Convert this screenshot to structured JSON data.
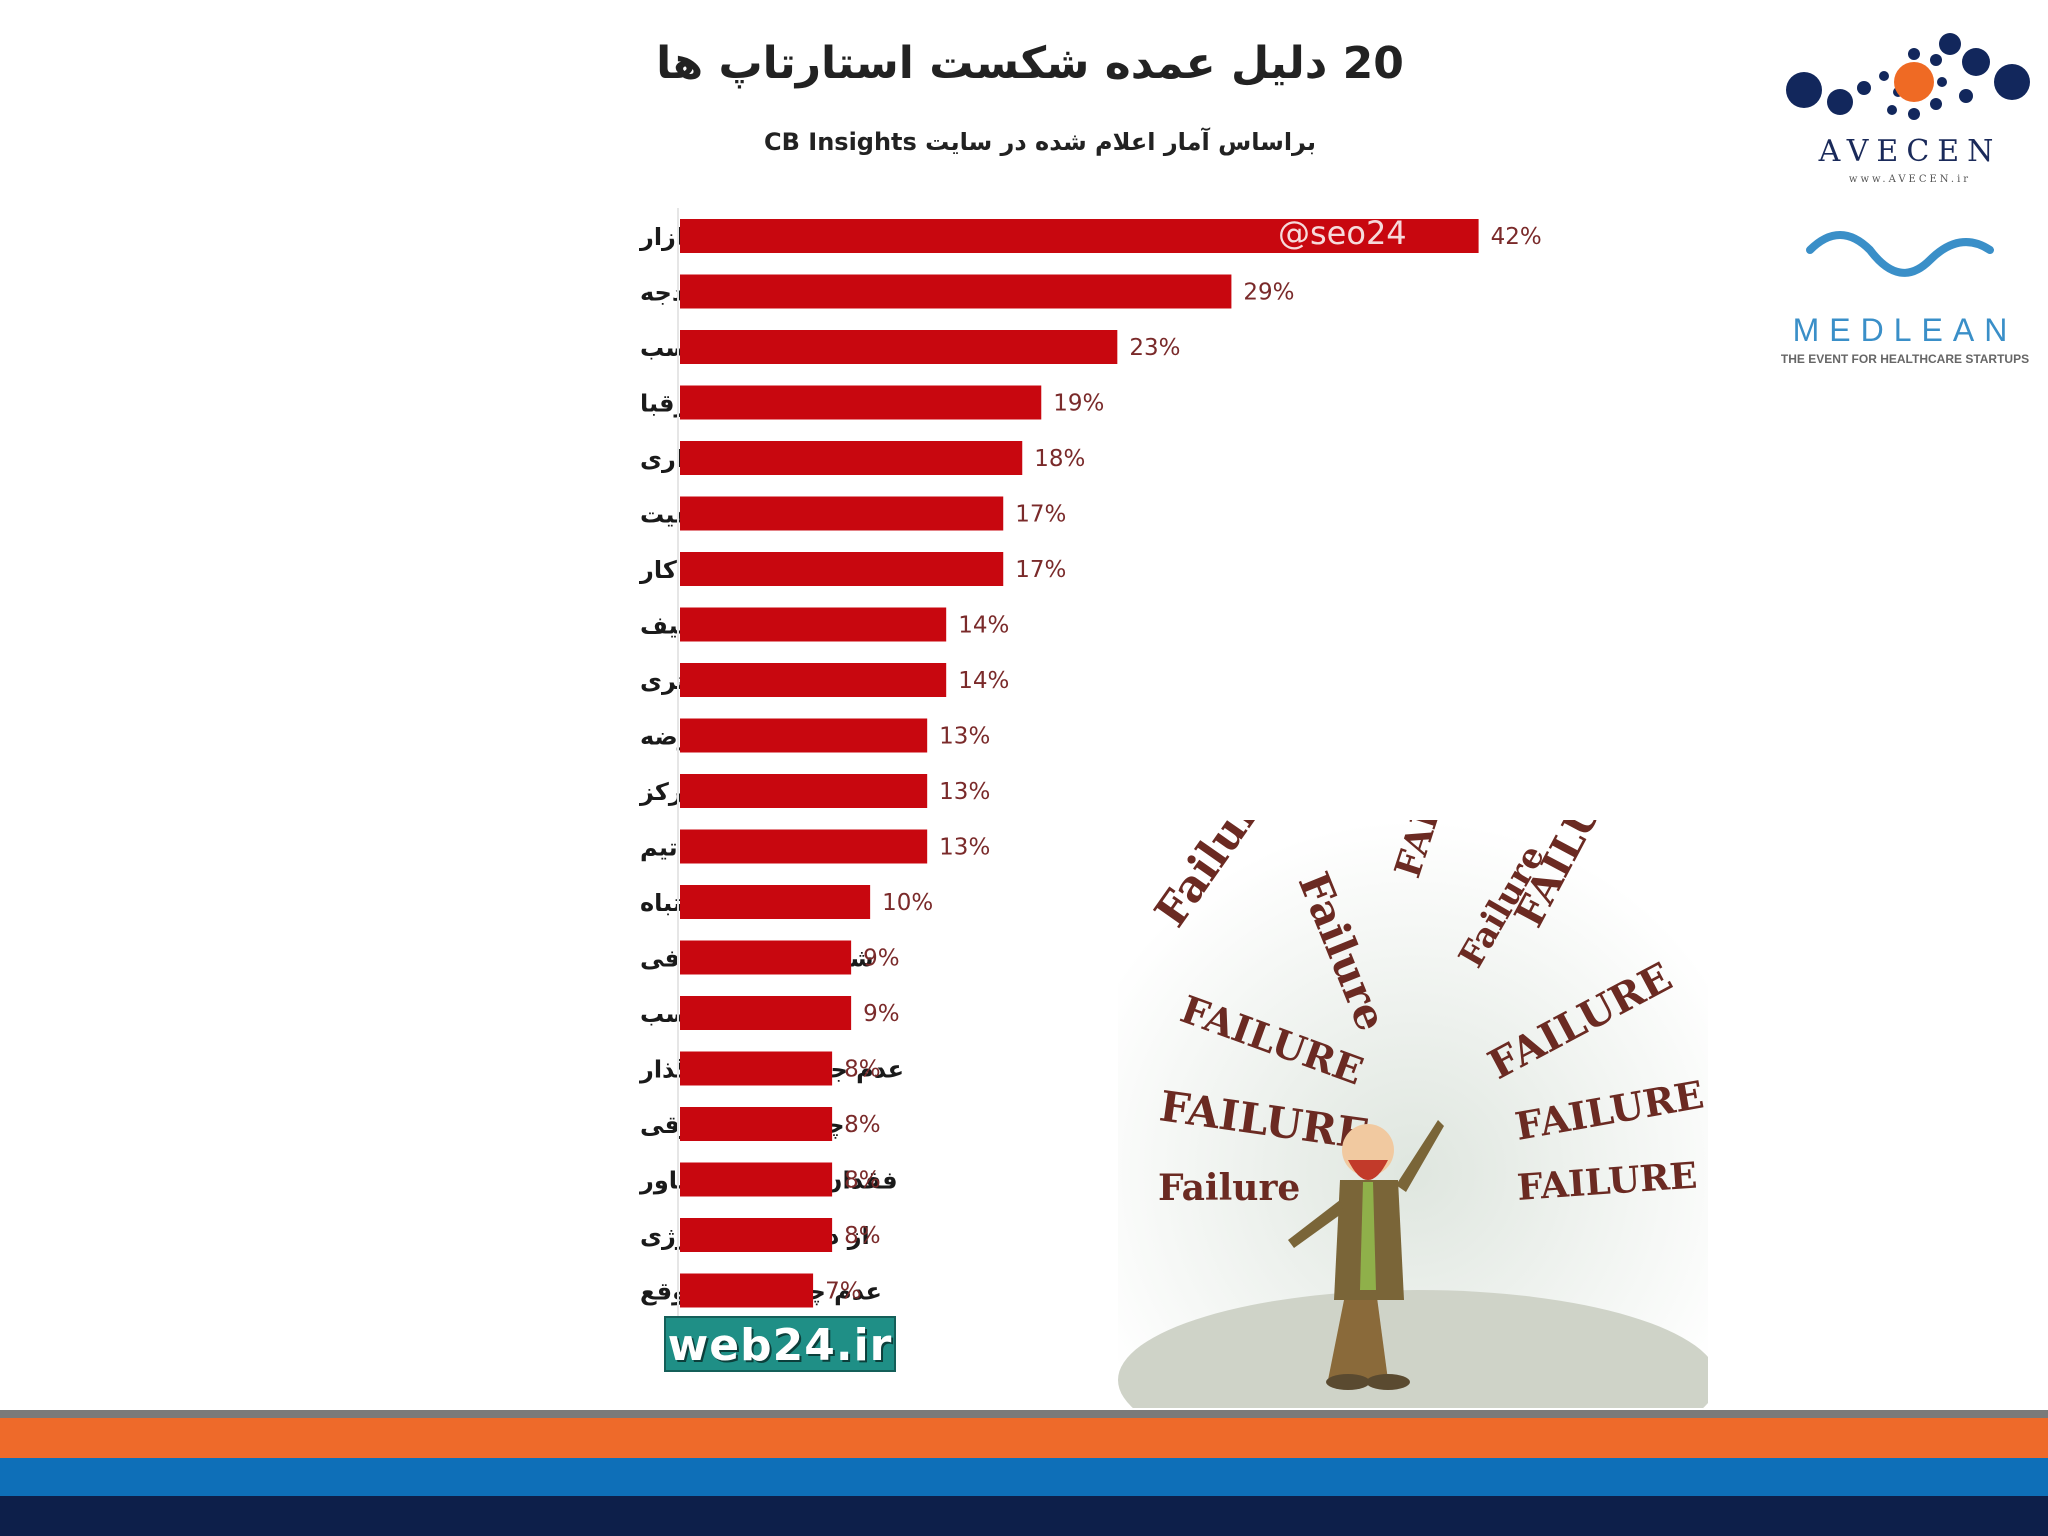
{
  "colors": {
    "bar": "#c8070f",
    "orange_stripe": "#ee6a2a",
    "blue_stripe": "#0e6fb8",
    "navy_stripe": "#0d1f4a",
    "web24_bg": "#1f8f86"
  },
  "chart_data": {
    "type": "bar",
    "orientation": "horizontal",
    "title": "20 دلیل عمده شکست استارتاپ ها",
    "subtitle": "براساس آمار اعلام شده در سایت  CB Insights",
    "categories": [
      "عدم نیاز بازار",
      "اتمام بودجه",
      "انتخاب تیم نامناسب",
      "شکست از رقبا",
      "اشتباه در قیمت گذاری",
      "محصول بی کیفیت",
      "فقدان طرح کسب و کار",
      "بازاریابی ضعیف",
      "بی توجهی به مشتری",
      "زمان نامناسب عرضه",
      "از دست دادن تمرکز",
      "ناهنماهنگی اعضای تیم",
      "چرخش اشتباه",
      "شور و شوق ناکافی",
      "مکان نامناسب",
      "عدم جذب سرمایه گذار",
      "چالشهای حقوقی",
      "فقدان شبکه یا مشاور",
      "از دست دادن انرژی",
      "عدم چرخش به موقع"
    ],
    "values": [
      42,
      29,
      23,
      19,
      18,
      17,
      17,
      14,
      14,
      13,
      13,
      13,
      10,
      9,
      9,
      8,
      8,
      8,
      8,
      7
    ],
    "value_labels": [
      "42%",
      "29%",
      "23%",
      "19%",
      "18%",
      "17%",
      "17%",
      "14%",
      "14%",
      "13%",
      "13%",
      "13%",
      "10%",
      "9%",
      "9%",
      "8%",
      "8%",
      "8%",
      "8%",
      "7%"
    ],
    "xlim": [
      0,
      45
    ],
    "grid": false,
    "legend": "none"
  },
  "watermark": "@seo24",
  "web24_logo": "web24.ir",
  "illustration": {
    "icon": "failure-illustration-icon",
    "words": [
      "Failure",
      "Failure",
      "FAILURE",
      "Failure",
      "FAILURE",
      "FAILURE",
      "FAILURE",
      "Failure",
      "FAILURE",
      "FAILURE",
      "FAILURE"
    ]
  },
  "logos": {
    "avecen": {
      "name": "AVECEN",
      "sub": "www.AVECEN.ir",
      "icon": "avecen-dots-icon"
    },
    "medlean": {
      "name": "MEDLEAN",
      "tagline": "THE EVENT FOR HEALTHCARE STARTUPS",
      "icon": "medlean-wave-icon"
    }
  }
}
